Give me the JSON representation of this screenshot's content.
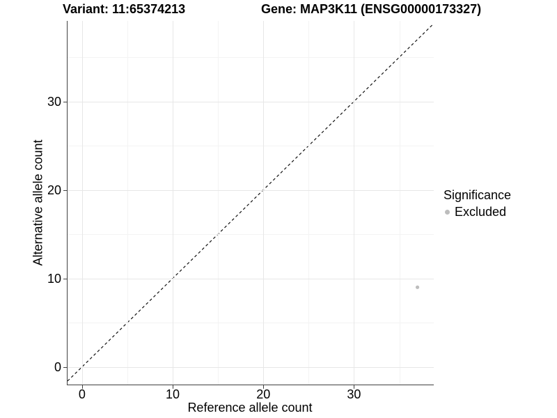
{
  "chart_data": {
    "type": "scatter",
    "title_left": "Variant: 11:65374213",
    "title_right": "Gene: MAP3K11 (ENSG00000173327)",
    "xlabel": "Reference allele count",
    "ylabel": "Alternative allele count",
    "x_ticks": [
      0,
      10,
      20,
      30
    ],
    "y_ticks": [
      0,
      10,
      20,
      30
    ],
    "xlim": [
      -1.6,
      38.8
    ],
    "ylim": [
      -2.0,
      39.1
    ],
    "grid": "major+minor",
    "identity_line": {
      "style": "dashed",
      "color": "#111111",
      "equation": "y = x"
    },
    "legend": {
      "title": "Significance",
      "position": "right",
      "entries": [
        {
          "label": "Excluded",
          "color": "#bdbdbd"
        }
      ]
    },
    "series": [
      {
        "name": "Excluded",
        "color": "#bdbdbd",
        "points": [
          {
            "x": 37,
            "y": 9
          }
        ]
      }
    ]
  },
  "colors": {
    "axis_line": "#404040",
    "grid_major": "#e7e7e7",
    "grid_minor": "#f3f3f3",
    "background": "#ffffff",
    "text": "#000000"
  }
}
